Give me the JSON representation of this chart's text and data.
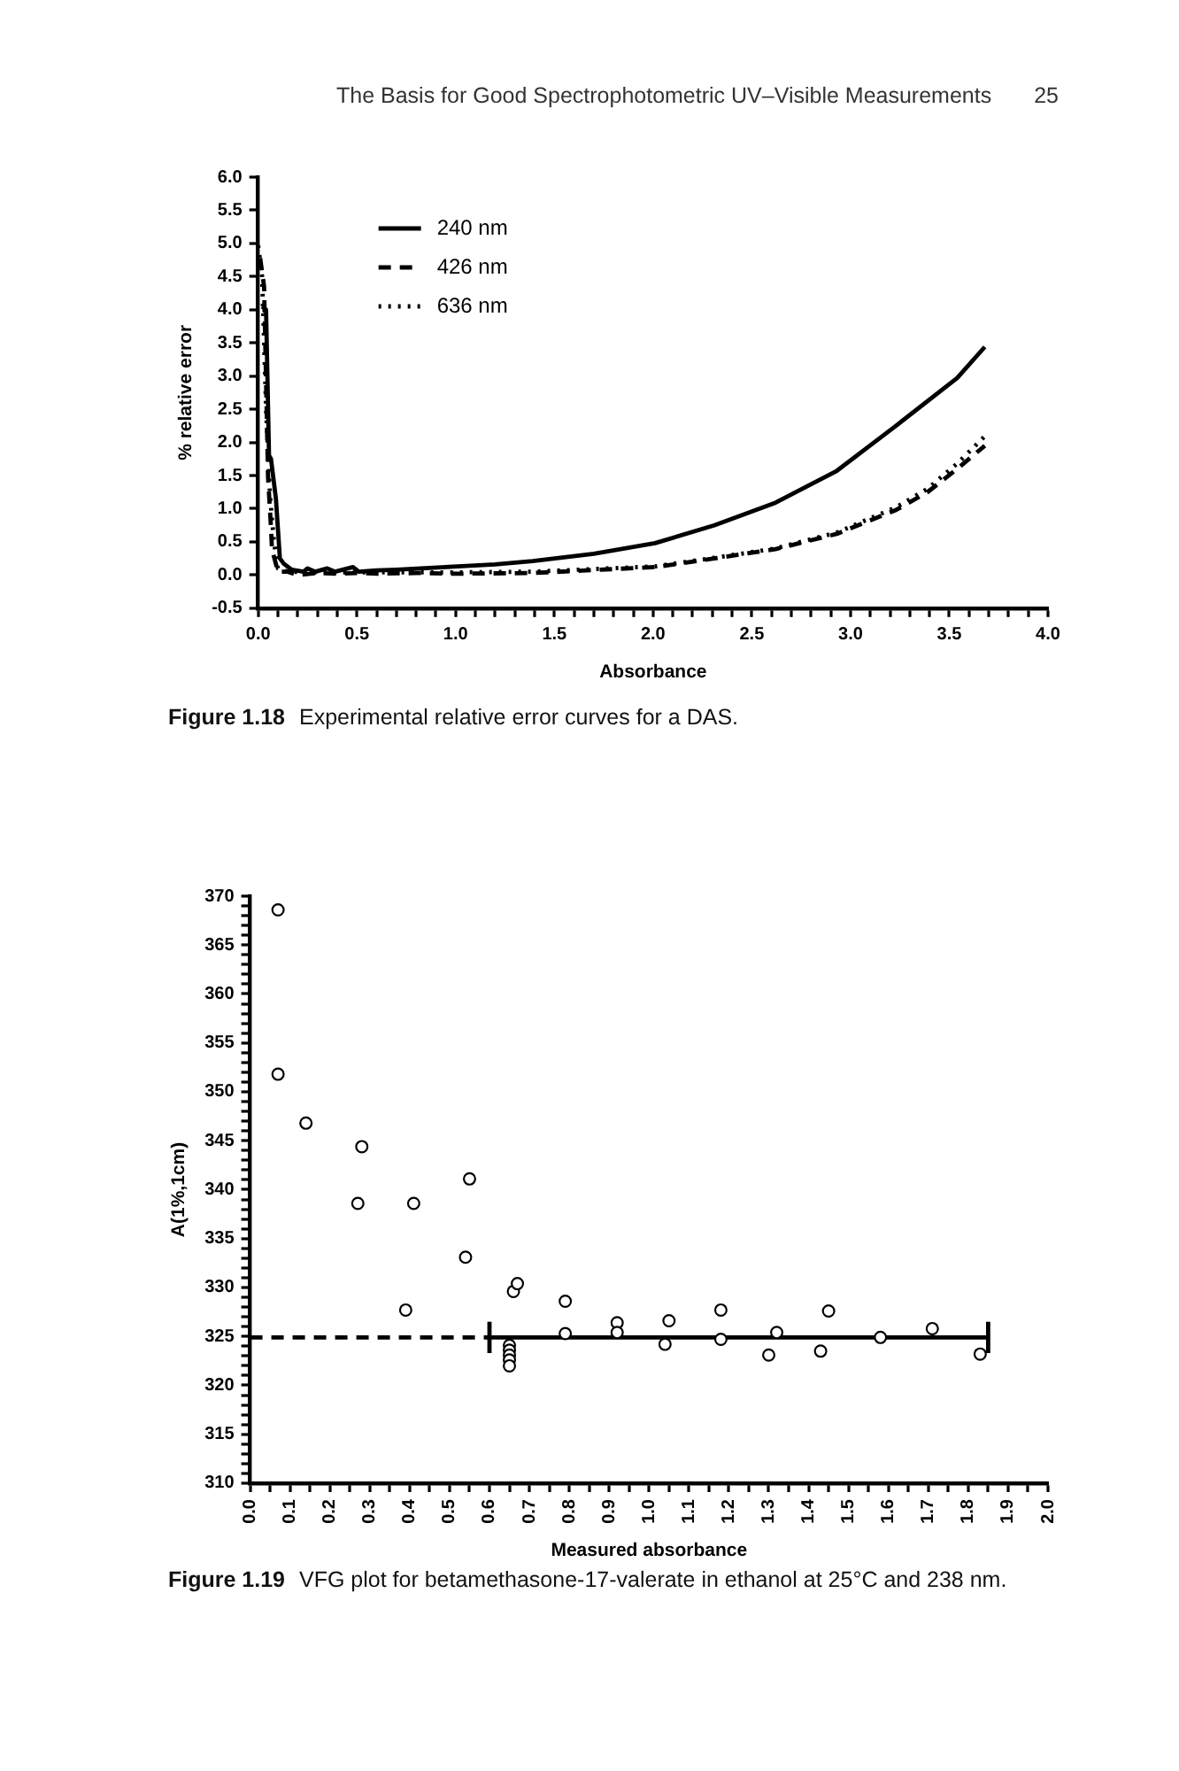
{
  "chart_data": [
    {
      "type": "line",
      "title": "Figure 1.18",
      "subtitle": "Experimental relative error curves for a DAS.",
      "xlabel": "Absorbance",
      "ylabel": "% relative error",
      "annotations": [
        "The Basis for Good Spectrophotometric UV–Visible Measurements",
        "25"
      ],
      "xlim": [
        0,
        4
      ],
      "xticks": [
        {
          "value": 0,
          "label": "0.0"
        },
        {
          "value": 0.1,
          "label": null
        },
        {
          "value": 0.2,
          "label": null
        },
        {
          "value": 0.3,
          "label": null
        },
        {
          "value": 0.4,
          "label": null
        },
        0.5,
        {
          "value": 0.6,
          "label": null
        },
        {
          "value": 0.7,
          "label": null
        },
        {
          "value": 0.8,
          "label": null
        },
        {
          "value": 0.9,
          "label": null
        },
        {
          "value": 1,
          "label": "1.0"
        },
        {
          "value": 1.1,
          "label": null
        },
        {
          "value": 1.2,
          "label": null
        },
        {
          "value": 1.3,
          "label": null
        },
        {
          "value": 1.4,
          "label": null
        },
        1.5,
        {
          "value": 1.6,
          "label": null
        },
        {
          "value": 1.7,
          "label": null
        },
        {
          "value": 1.8,
          "label": null
        },
        {
          "value": 1.9,
          "label": null
        },
        {
          "value": 2,
          "label": "2.0"
        },
        {
          "value": 2.1,
          "label": null
        },
        {
          "value": 2.2,
          "label": null
        },
        {
          "value": 2.3,
          "label": null
        },
        {
          "value": 2.4,
          "label": null
        },
        2.5,
        {
          "value": 2.6,
          "label": null
        },
        {
          "value": 2.7,
          "label": null
        },
        {
          "value": 2.8,
          "label": null
        },
        {
          "value": 2.9,
          "label": null
        },
        {
          "value": 3,
          "label": "3.0"
        },
        {
          "value": 3.1,
          "label": null
        },
        {
          "value": 3.2,
          "label": null
        },
        {
          "value": 3.3,
          "label": null
        },
        {
          "value": 3.4,
          "label": null
        },
        3.5,
        {
          "value": 3.6,
          "label": null
        },
        {
          "value": 3.7,
          "label": null
        },
        {
          "value": 3.8,
          "label": null
        },
        {
          "value": 3.9,
          "label": null
        },
        {
          "value": 4,
          "label": "4.0"
        }
      ],
      "ylim": [
        -0.5,
        6
      ],
      "yticks": [
        -0.5,
        {
          "value": 0,
          "label": "0.0"
        },
        0.5,
        {
          "value": 1,
          "label": "1.0"
        },
        1.5,
        {
          "value": 2,
          "label": "2.0"
        },
        2.5,
        {
          "value": 3,
          "label": "3.0"
        },
        3.5,
        {
          "value": 4,
          "label": "4.0"
        },
        4.5,
        {
          "value": 5,
          "label": "5.0"
        },
        5.5,
        {
          "value": 6,
          "label": "6.0"
        }
      ],
      "legend": "top left",
      "marker": "none",
      "series": [
        {
          "name": "240 nm",
          "color": "#000000",
          "line_style": "solid",
          "x": [
            0.02,
            0.04,
            0.055,
            0.065,
            0.09,
            0.11,
            0.13,
            0.17,
            0.23,
            0.25,
            0.29,
            0.35,
            0.39,
            0.48,
            0.51,
            0.6,
            0.7,
            0.95,
            1.2,
            1.39,
            1.7,
            2.01,
            2.31,
            2.62,
            2.93,
            3.23,
            3.54,
            3.68
          ],
          "values": [
            4.05,
            4.0,
            1.8,
            1.75,
            1.15,
            0.25,
            0.17,
            0.08,
            0.05,
            0.1,
            0.05,
            0.1,
            0.05,
            0.12,
            0.05,
            0.07,
            0.08,
            0.12,
            0.16,
            0.21,
            0.32,
            0.48,
            0.75,
            1.09,
            1.57,
            2.25,
            2.97,
            3.44
          ]
        },
        {
          "name": "426 nm",
          "color": "#000000",
          "line_style": "dashed",
          "x": [
            0.01,
            0.03,
            0.05,
            0.065,
            0.07,
            0.1,
            0.15,
            0.2,
            0.3,
            0.4,
            0.5,
            0.6,
            0.8,
            1.0,
            1.39,
            2.01,
            2.31,
            2.62,
            2.93,
            3.23,
            3.39,
            3.54,
            3.68
          ],
          "values": [
            4.78,
            4.35,
            1.48,
            0.71,
            0.39,
            0.05,
            0.05,
            0.0,
            0.03,
            0.02,
            0.03,
            0.02,
            0.03,
            0.02,
            0.03,
            0.12,
            0.25,
            0.39,
            0.62,
            0.98,
            1.25,
            1.6,
            1.95
          ]
        },
        {
          "name": "636 nm",
          "color": "#000000",
          "line_style": "dotted",
          "x": [
            0.0,
            0.02,
            0.04,
            0.06,
            0.08,
            0.1,
            0.15,
            0.3,
            0.6,
            1.0,
            1.39,
            2.01,
            2.31,
            2.62,
            2.93,
            3.23,
            3.39,
            3.54,
            3.7
          ],
          "values": [
            4.97,
            4.5,
            2.5,
            1.2,
            0.5,
            0.1,
            0.05,
            0.04,
            0.04,
            0.04,
            0.05,
            0.13,
            0.26,
            0.4,
            0.64,
            1.02,
            1.3,
            1.68,
            2.15
          ]
        }
      ]
    },
    {
      "type": "scatter",
      "title": "Figure 1.19",
      "subtitle": "VFG plot for betamethasone-17-valerate in ethanol at 25°C and 238 nm.",
      "xlabel": "Measured absorbance",
      "ylabel": "A(1%,1cm)",
      "xlim": [
        0,
        2
      ],
      "xticks": [
        {
          "value": 0,
          "label": "0.0"
        },
        {
          "value": 0.05,
          "label": null
        },
        0.1,
        {
          "value": 0.15,
          "label": null
        },
        0.2,
        {
          "value": 0.25,
          "label": null
        },
        0.3,
        {
          "value": 0.35,
          "label": null
        },
        0.4,
        {
          "value": 0.45,
          "label": null
        },
        0.5,
        {
          "value": 0.55,
          "label": null
        },
        0.6,
        {
          "value": 0.65,
          "label": null
        },
        0.7,
        {
          "value": 0.75,
          "label": null
        },
        0.8,
        {
          "value": 0.85,
          "label": null
        },
        0.9,
        {
          "value": 0.95,
          "label": null
        },
        {
          "value": 1,
          "label": "1.0"
        },
        {
          "value": 1.05,
          "label": null
        },
        1.1,
        {
          "value": 1.15,
          "label": null
        },
        1.2,
        {
          "value": 1.25,
          "label": null
        },
        1.3,
        {
          "value": 1.35,
          "label": null
        },
        1.4,
        {
          "value": 1.45,
          "label": null
        },
        1.5,
        {
          "value": 1.55,
          "label": null
        },
        1.6,
        {
          "value": 1.65,
          "label": null
        },
        1.7,
        {
          "value": 1.75,
          "label": null
        },
        1.8,
        {
          "value": 1.85,
          "label": null
        },
        1.9,
        {
          "value": 1.95,
          "label": null
        },
        {
          "value": 2,
          "label": "2.0"
        }
      ],
      "ylim": [
        310,
        370
      ],
      "yticks": [
        310,
        {
          "value": 311,
          "label": null
        },
        {
          "value": 312,
          "label": null
        },
        {
          "value": 313,
          "label": null
        },
        {
          "value": 314,
          "label": null
        },
        315,
        {
          "value": 316,
          "label": null
        },
        {
          "value": 317,
          "label": null
        },
        {
          "value": 318,
          "label": null
        },
        {
          "value": 319,
          "label": null
        },
        320,
        {
          "value": 321,
          "label": null
        },
        {
          "value": 322,
          "label": null
        },
        {
          "value": 323,
          "label": null
        },
        {
          "value": 324,
          "label": null
        },
        325,
        {
          "value": 326,
          "label": null
        },
        {
          "value": 327,
          "label": null
        },
        {
          "value": 328,
          "label": null
        },
        {
          "value": 329,
          "label": null
        },
        330,
        {
          "value": 331,
          "label": null
        },
        {
          "value": 332,
          "label": null
        },
        {
          "value": 333,
          "label": null
        },
        {
          "value": 334,
          "label": null
        },
        335,
        {
          "value": 336,
          "label": null
        },
        {
          "value": 337,
          "label": null
        },
        {
          "value": 338,
          "label": null
        },
        {
          "value": 339,
          "label": null
        },
        340,
        {
          "value": 341,
          "label": null
        },
        {
          "value": 342,
          "label": null
        },
        {
          "value": 343,
          "label": null
        },
        {
          "value": 344,
          "label": null
        },
        345,
        {
          "value": 346,
          "label": null
        },
        {
          "value": 347,
          "label": null
        },
        {
          "value": 348,
          "label": null
        },
        {
          "value": 349,
          "label": null
        },
        350,
        {
          "value": 351,
          "label": null
        },
        {
          "value": 352,
          "label": null
        },
        {
          "value": 353,
          "label": null
        },
        {
          "value": 354,
          "label": null
        },
        355,
        {
          "value": 356,
          "label": null
        },
        {
          "value": 357,
          "label": null
        },
        {
          "value": 358,
          "label": null
        },
        {
          "value": 359,
          "label": null
        },
        360,
        {
          "value": 361,
          "label": null
        },
        {
          "value": 362,
          "label": null
        },
        {
          "value": 363,
          "label": null
        },
        {
          "value": 364,
          "label": null
        },
        365,
        {
          "value": 366,
          "label": null
        },
        {
          "value": 367,
          "label": null
        },
        {
          "value": 368,
          "label": null
        },
        {
          "value": 369,
          "label": null
        },
        370
      ],
      "series": [
        {
          "type": "scatter",
          "color": "#000000",
          "marker": "circle",
          "x": [
            0.07,
            0.07,
            0.14,
            0.28,
            0.27,
            0.39,
            0.41,
            0.54,
            0.55,
            0.65,
            0.65,
            0.65,
            0.65,
            0.65,
            0.66,
            0.67,
            0.79,
            0.79,
            0.92,
            0.92,
            1.04,
            1.05,
            1.18,
            1.18,
            1.3,
            1.32,
            1.43,
            1.45,
            1.58,
            1.71,
            1.83
          ],
          "values": [
            368.6,
            351.8,
            346.8,
            344.4,
            338.6,
            327.7,
            338.6,
            333.1,
            341.1,
            324.1,
            323.6,
            323.1,
            322.6,
            322.0,
            329.6,
            330.4,
            325.3,
            328.6,
            326.4,
            325.4,
            324.2,
            326.6,
            324.7,
            327.7,
            323.1,
            325.4,
            323.5,
            327.6,
            324.9,
            325.8,
            323.2
          ]
        },
        {
          "type": "line",
          "color": "#000000",
          "line_style": "dashed",
          "marker": "none",
          "x": [
            0,
            0.6
          ],
          "values": [
            324.9,
            324.9
          ]
        },
        {
          "type": "line",
          "color": "#000000",
          "line_style": "solid",
          "marker": "none",
          "x": [
            0.6,
            1.85
          ],
          "values": [
            324.9,
            324.9
          ],
          "errors": [
            1.6,
            1.6
          ]
        }
      ]
    }
  ]
}
